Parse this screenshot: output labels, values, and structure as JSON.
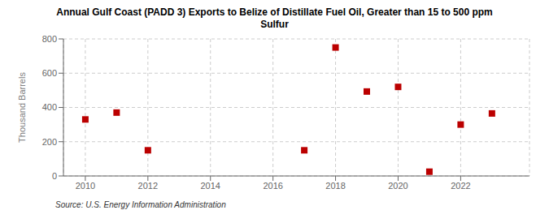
{
  "chart_data": {
    "type": "scatter",
    "title": "Annual Gulf Coast (PADD 3) Exports to Belize of Distillate Fuel Oil, Greater than 15 to 500 ppm\nSulfur",
    "y_label": "Thousand Barrels",
    "source": "Source: U.S. Energy Information Administration",
    "x": [
      2010,
      2011,
      2012,
      2017,
      2018,
      2019,
      2020,
      2021,
      2022,
      2023
    ],
    "values": [
      330,
      370,
      150,
      150,
      750,
      493,
      520,
      25,
      300,
      365
    ],
    "color": "#bb0000",
    "marker": "square",
    "xlim": [
      2009.3,
      2024.2
    ],
    "xticks": [
      2010,
      2012,
      2014,
      2016,
      2018,
      2020,
      2022
    ],
    "ylim": [
      0,
      800
    ],
    "yticks": [
      0,
      200,
      400,
      600,
      800
    ],
    "grid": true
  }
}
